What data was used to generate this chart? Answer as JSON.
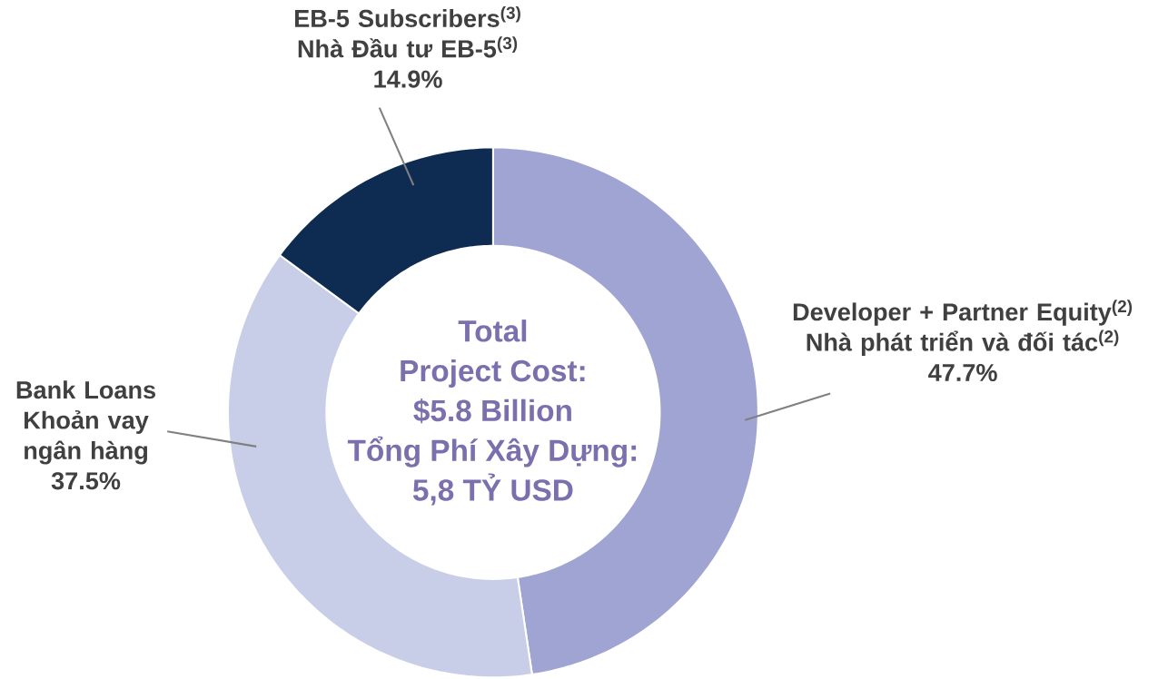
{
  "chart_data": {
    "type": "donut",
    "categories": [
      "Developer + Partner Equity$^{(2)}$ Nhà phát triển và đối tác$^{(2)}$",
      "Bank Loans Khoản vay ngân hàng",
      "EB-5 Subscribers$^{(3)}$ Nhà Đầu tư EB-5$^{(3)}$"
    ],
    "values": [
      47.7,
      37.5,
      14.9
    ],
    "value_labels": [
      "47.7%",
      "37.5%",
      "14.9%"
    ],
    "colors": [
      "#a0a4d2",
      "#c8cee8",
      "#0e2c52"
    ],
    "annotations": [
      "Total",
      "Project Cost:",
      "$5.8 Billion",
      "Tổng Phí Xây Dựng:",
      "5,8 TỶ USD"
    ]
  }
}
